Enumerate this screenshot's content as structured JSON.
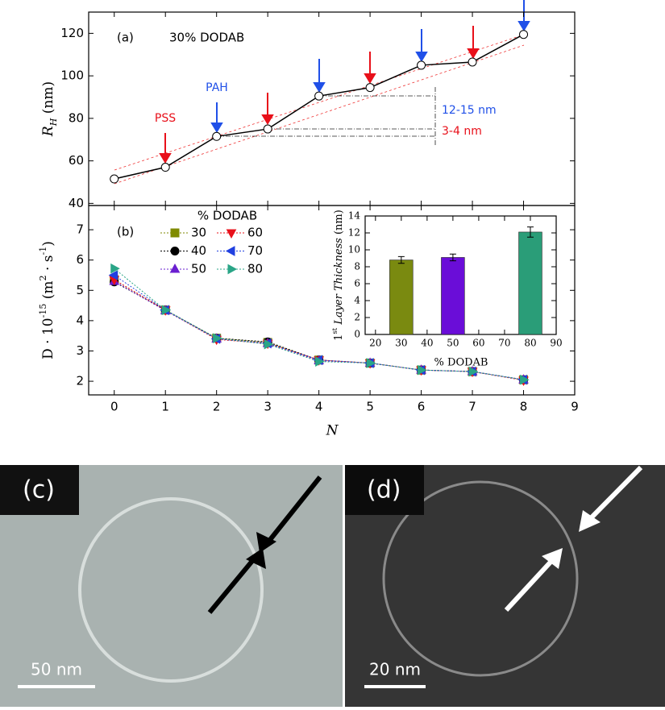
{
  "chart_data": [
    {
      "type": "line",
      "panel": "(a)",
      "annotation": "30% DODAB",
      "labels": [
        "PSS",
        "PAH",
        "12-15 nm",
        "3-4 nm"
      ],
      "ylabel": [
        {
          "text": "R",
          "style": "italic"
        },
        {
          "text": "H",
          "script": "sub",
          "style": "italic"
        },
        {
          "text": " (nm)"
        }
      ],
      "x": [
        0,
        1,
        2,
        3,
        4,
        5,
        6,
        7,
        8
      ],
      "values": [
        51.5,
        57,
        71.5,
        75,
        90.5,
        94.5,
        105,
        106.5,
        119.5
      ],
      "color": "#000000",
      "marker": "circle-open",
      "xlim": [
        -0.5,
        9
      ],
      "ylim": [
        39,
        130
      ],
      "yticks": [
        40,
        60,
        80,
        100,
        120
      ],
      "grid": false
    },
    {
      "type": "line",
      "panel": "(b)",
      "legend_title": "% DODAB",
      "xlabel": "N",
      "ylabel": [
        {
          "text": "D · 10"
        },
        {
          "text": "-15",
          "script": "super"
        },
        {
          "text": " (m"
        },
        {
          "text": "2",
          "script": "super"
        },
        {
          "text": " · s"
        },
        {
          "text": "-1",
          "script": "super"
        },
        {
          "text": ")"
        }
      ],
      "x": [
        0,
        1,
        2,
        3,
        4,
        5,
        6,
        7,
        8
      ],
      "series": [
        {
          "name": "30",
          "color": "#7f8a00",
          "marker": "square",
          "values": [
            5.35,
            4.35,
            3.42,
            3.28,
            2.7,
            2.6,
            2.37,
            2.32,
            2.05
          ]
        },
        {
          "name": "40",
          "color": "#000000",
          "marker": "circle",
          "values": [
            5.28,
            4.35,
            3.42,
            3.3,
            2.7,
            2.6,
            2.37,
            2.32,
            2.05
          ]
        },
        {
          "name": "50",
          "color": "#6a1fd0",
          "marker": "triangle-up",
          "values": [
            5.3,
            4.33,
            3.4,
            3.25,
            2.68,
            2.6,
            2.37,
            2.32,
            2.05
          ]
        },
        {
          "name": "60",
          "color": "#e8101a",
          "marker": "triangle-down",
          "values": [
            5.35,
            4.35,
            3.38,
            3.25,
            2.7,
            2.6,
            2.37,
            2.32,
            2.03
          ]
        },
        {
          "name": "70",
          "color": "#2040e0",
          "marker": "triangle-left",
          "values": [
            5.5,
            4.35,
            3.4,
            3.25,
            2.7,
            2.6,
            2.37,
            2.32,
            2.05
          ]
        },
        {
          "name": "80",
          "color": "#2aa587",
          "marker": "triangle-right",
          "values": [
            5.72,
            4.35,
            3.42,
            3.22,
            2.65,
            2.6,
            2.37,
            2.32,
            2.05
          ]
        }
      ],
      "xlim": [
        -0.5,
        9
      ],
      "xticks": [
        0,
        1,
        2,
        3,
        4,
        5,
        6,
        7,
        8,
        9
      ],
      "ylim": [
        1.55,
        7.8
      ],
      "yticks": [
        2,
        3,
        4,
        5,
        6,
        7
      ],
      "grid": false
    },
    {
      "type": "bar",
      "xlabel": "% DODAB",
      "ylabel": [
        {
          "text": "1"
        },
        {
          "text": "st",
          "script": "super"
        },
        {
          "text": " Layer Thickness",
          "style": "italic"
        },
        {
          "text": " (nm)"
        }
      ],
      "x": [
        30,
        50,
        80
      ],
      "values": [
        8.8,
        9.1,
        12.1
      ],
      "errors": [
        0.4,
        0.4,
        0.6
      ],
      "colors": [
        "#7a8a10",
        "#6a0dd8",
        "#2a9d78"
      ],
      "xlim": [
        16,
        90
      ],
      "xticks": [
        20,
        30,
        40,
        50,
        60,
        70,
        80,
        90
      ],
      "ylim": [
        0,
        14
      ],
      "yticks": [
        0,
        2,
        4,
        6,
        8,
        10,
        12,
        14
      ],
      "grid": false
    }
  ],
  "images": [
    {
      "label": "(c)",
      "scale": "50 nm"
    },
    {
      "label": "(d)",
      "scale": "20 nm"
    }
  ]
}
